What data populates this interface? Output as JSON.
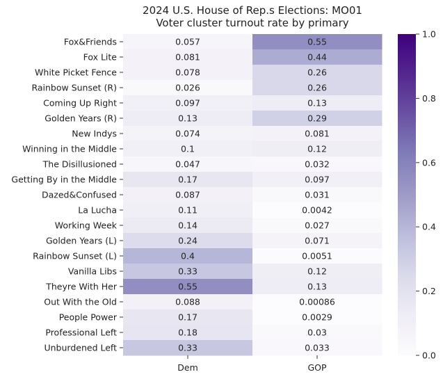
{
  "chart_data": {
    "type": "heatmap",
    "title_lines": [
      "2024 U.S. House of Rep.s Elections: MO01",
      "Voter cluster turnout rate by primary"
    ],
    "xlabel": "",
    "ylabel": "",
    "columns": [
      "Dem",
      "GOP"
    ],
    "rows": [
      "Fox&Friends",
      "Fox Lite",
      "White Picket Fence",
      "Rainbow Sunset (R)",
      "Coming Up Right",
      "Golden Years (R)",
      "New Indys",
      "Winning in the Middle",
      "The Disillusioned",
      "Getting By in the Middle",
      "Dazed&Confused",
      "La Lucha",
      "Working Week",
      "Golden Years (L)",
      "Rainbow Sunset (L)",
      "Vanilla Libs",
      "Theyre With Her",
      "Out With the Old",
      "People Power",
      "Professional Left",
      "Unburdened Left"
    ],
    "values": [
      [
        0.057,
        0.55
      ],
      [
        0.081,
        0.44
      ],
      [
        0.078,
        0.26
      ],
      [
        0.026,
        0.26
      ],
      [
        0.097,
        0.13
      ],
      [
        0.13,
        0.29
      ],
      [
        0.074,
        0.081
      ],
      [
        0.1,
        0.12
      ],
      [
        0.047,
        0.032
      ],
      [
        0.17,
        0.097
      ],
      [
        0.087,
        0.031
      ],
      [
        0.11,
        0.0042
      ],
      [
        0.14,
        0.027
      ],
      [
        0.24,
        0.071
      ],
      [
        0.4,
        0.0051
      ],
      [
        0.33,
        0.12
      ],
      [
        0.55,
        0.13
      ],
      [
        0.088,
        0.00086
      ],
      [
        0.17,
        0.0029
      ],
      [
        0.18,
        0.03
      ],
      [
        0.33,
        0.033
      ]
    ],
    "value_labels": [
      [
        "0.057",
        "0.55"
      ],
      [
        "0.081",
        "0.44"
      ],
      [
        "0.078",
        "0.26"
      ],
      [
        "0.026",
        "0.26"
      ],
      [
        "0.097",
        "0.13"
      ],
      [
        "0.13",
        "0.29"
      ],
      [
        "0.074",
        "0.081"
      ],
      [
        "0.1",
        "0.12"
      ],
      [
        "0.047",
        "0.032"
      ],
      [
        "0.17",
        "0.097"
      ],
      [
        "0.087",
        "0.031"
      ],
      [
        "0.11",
        "0.0042"
      ],
      [
        "0.14",
        "0.027"
      ],
      [
        "0.24",
        "0.071"
      ],
      [
        "0.4",
        "0.0051"
      ],
      [
        "0.33",
        "0.12"
      ],
      [
        "0.55",
        "0.13"
      ],
      [
        "0.088",
        "0.00086"
      ],
      [
        "0.17",
        "0.0029"
      ],
      [
        "0.18",
        "0.03"
      ],
      [
        "0.33",
        "0.033"
      ]
    ],
    "color_range": [
      0.0,
      1.0
    ],
    "colormap": "Purples",
    "colormap_stops": [
      "#fcfbfd",
      "#efedf5",
      "#dadaeb",
      "#bcbddc",
      "#9e9ac8",
      "#807dba",
      "#6a51a3",
      "#54278f",
      "#3f007d"
    ],
    "colorbar_ticks": [
      0.0,
      0.2,
      0.4,
      0.6,
      0.8,
      1.0
    ],
    "colorbar_tick_labels": [
      "0.0",
      "0.2",
      "0.4",
      "0.6",
      "0.8",
      "1.0"
    ],
    "legend_placement": "right",
    "grid": false
  }
}
